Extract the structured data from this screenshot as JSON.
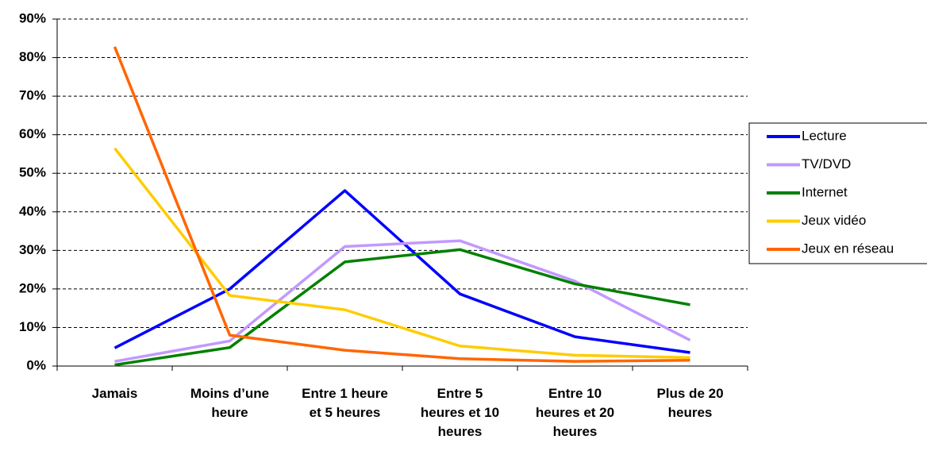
{
  "chart_data": {
    "type": "line",
    "categories": [
      "Jamais",
      "Moins d’une heure",
      "Entre 1 heure et 5 heures",
      "Entre 5 heures et 10 heures",
      "Entre 10 heures et 20 heures",
      "Plus de 20 heures"
    ],
    "series": [
      {
        "name": "Lecture",
        "color": "#0000ff",
        "values": [
          4.7,
          20,
          45.5,
          18.7,
          7.6,
          3.5
        ]
      },
      {
        "name": "TV/DVD",
        "color": "#c299ff",
        "values": [
          1.2,
          6.5,
          31,
          32.5,
          22,
          6.7
        ]
      },
      {
        "name": "Internet",
        "color": "#008000",
        "values": [
          0.3,
          4.8,
          27,
          30.2,
          21.3,
          15.9
        ]
      },
      {
        "name": "Jeux vidéo",
        "color": "#ffcc00",
        "values": [
          56.5,
          18.3,
          14.6,
          5.2,
          2.8,
          2.2
        ]
      },
      {
        "name": "Jeux en réseau",
        "color": "#ff6600",
        "values": [
          82.8,
          8,
          4.1,
          1.9,
          1.2,
          1.5
        ]
      }
    ],
    "ylim": [
      0,
      90
    ],
    "yticks": [
      {
        "value": 0,
        "label": "0%"
      },
      {
        "value": 10,
        "label": "10%"
      },
      {
        "value": 20,
        "label": "20%"
      },
      {
        "value": 30,
        "label": "30%"
      },
      {
        "value": 40,
        "label": "40%"
      },
      {
        "value": 50,
        "label": "50%"
      },
      {
        "value": 60,
        "label": "60%"
      },
      {
        "value": 70,
        "label": "70%"
      },
      {
        "value": 80,
        "label": "80%"
      },
      {
        "value": 90,
        "label": "90%"
      }
    ],
    "grid": true,
    "legend": "right"
  }
}
